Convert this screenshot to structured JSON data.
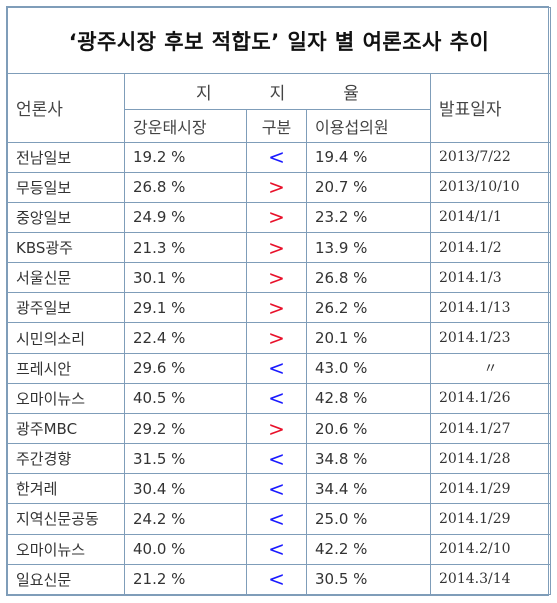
{
  "title": "‘광주시장 후보 적합도’ 일자 별 여론조사 추이",
  "headers": {
    "outlet": "언론사",
    "support": "지지율",
    "candidate_a": "강운태시장",
    "division": "구분",
    "candidate_b": "이용섭의원",
    "date": "발표일자"
  },
  "colors": {
    "less_than": "#1a1aff",
    "greater_than": "#e8102a",
    "border": "#7f9db9"
  },
  "rows": [
    {
      "outlet": "전남일보",
      "a": "19.2 %",
      "sign": "<",
      "b": "19.4 %",
      "date": "2013/7/22"
    },
    {
      "outlet": "무등일보",
      "a": "26.8 %",
      "sign": ">",
      "b": "20.7 %",
      "date": "2013/10/10"
    },
    {
      "outlet": "중앙일보",
      "a": "24.9 %",
      "sign": ">",
      "b": "23.2 %",
      "date": "2014/1/1"
    },
    {
      "outlet": "KBS광주",
      "a": "21.3 %",
      "sign": ">",
      "b": "13.9 %",
      "date": "2014.1/2"
    },
    {
      "outlet": "서울신문",
      "a": "30.1 %",
      "sign": ">",
      "b": "26.8 %",
      "date": "2014.1/3"
    },
    {
      "outlet": "광주일보",
      "a": "29.1 %",
      "sign": ">",
      "b": "26.2 %",
      "date": "2014.1/13"
    },
    {
      "outlet": "시민의소리",
      "a": "22.4 %",
      "sign": ">",
      "b": "20.1 %",
      "date": "2014.1/23"
    },
    {
      "outlet": "프레시안",
      "a": "29.6 %",
      "sign": "<",
      "b": "43.0 %",
      "date": "〃"
    },
    {
      "outlet": "오마이뉴스",
      "a": "40.5 %",
      "sign": "<",
      "b": "42.8 %",
      "date": "2014.1/26"
    },
    {
      "outlet": "광주MBC",
      "a": "29.2 %",
      "sign": ">",
      "b": "20.6 %",
      "date": "2014.1/27"
    },
    {
      "outlet": "주간경향",
      "a": "31.5 %",
      "sign": "<",
      "b": "34.8 %",
      "date": "2014.1/28"
    },
    {
      "outlet": "한겨레",
      "a": "30.4 %",
      "sign": "<",
      "b": "34.4 %",
      "date": "2014.1/29"
    },
    {
      "outlet": "지역신문공동",
      "a": "24.2 %",
      "sign": "<",
      "b": "25.0 %",
      "date": "2014.1/29"
    },
    {
      "outlet": "오마이뉴스",
      "a": "40.0 %",
      "sign": "<",
      "b": "42.2 %",
      "date": "2014.2/10"
    },
    {
      "outlet": "일요신문",
      "a": "21.2 %",
      "sign": "<",
      "b": "30.5 %",
      "date": "2014.3/14"
    }
  ]
}
